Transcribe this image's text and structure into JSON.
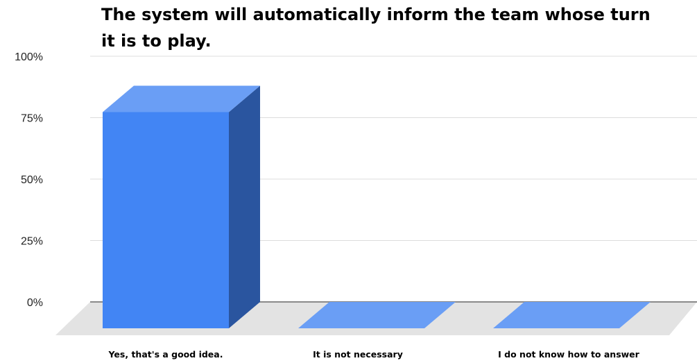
{
  "chart_data": {
    "type": "bar",
    "style": "3d-column",
    "title_lines": [
      "The system will automatically inform the team whose turn",
      "it is to play."
    ],
    "categories": [
      "Yes, that's a good idea.",
      "It is not necessary",
      "I do not know how to answer"
    ],
    "values": [
      88,
      0,
      0
    ],
    "value_unit": "%",
    "ylim": [
      0,
      100
    ],
    "yticks": [
      "0%",
      "25%",
      "50%",
      "75%",
      "100%"
    ],
    "ytick_values": [
      0,
      25,
      50,
      75,
      100
    ],
    "grid": true,
    "legend": "none",
    "colors": {
      "bar_front": "#4285f4",
      "bar_top": "#6a9ef5",
      "bar_side": "#2a559f",
      "floor": "#e3e3e3",
      "gridline": "#dcdcdc",
      "baseline": "#8a8a8a"
    }
  }
}
